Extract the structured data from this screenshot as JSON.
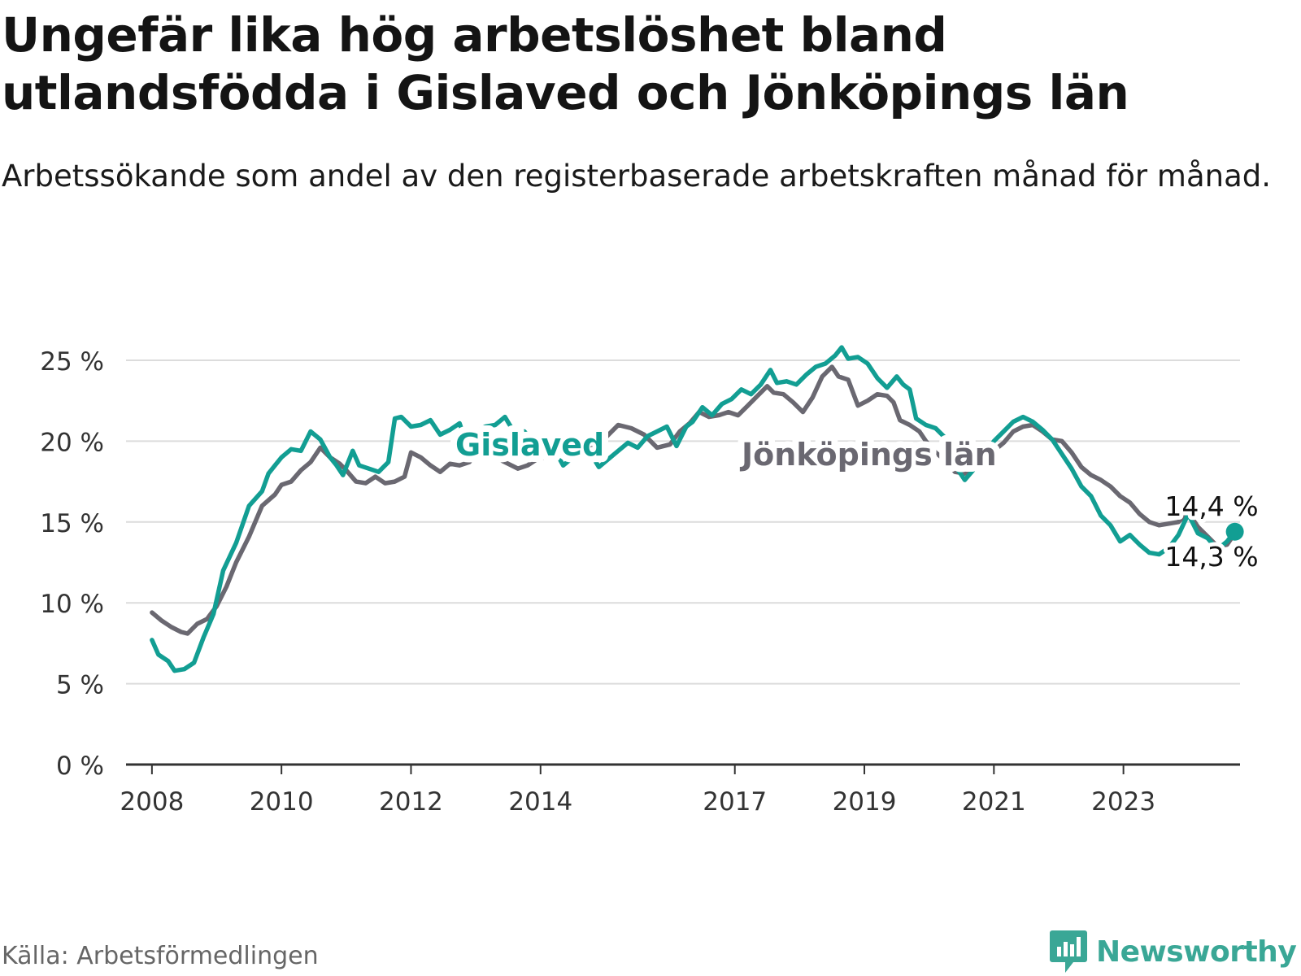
{
  "header": {
    "title": "Ungefär lika hög arbetslöshet bland utlandsfödda i Gislaved och Jönköpings län",
    "subtitle": "Arbetssökande som andel av den registerbaserade arbetskraften månad för månad."
  },
  "footer": {
    "source": "Källa: Arbetsförmedlingen",
    "brand": "Newsworthy"
  },
  "colors": {
    "gislaved": "#129e93",
    "jonkoping": "#6a6871",
    "grid": "#dcdcdc",
    "axis": "#333333",
    "brand": "#3aa796"
  },
  "chart_data": {
    "type": "line",
    "title": "Ungefär lika hög arbetslöshet bland utlandsfödda i Gislaved och Jönköpings län",
    "xlabel": "",
    "ylabel": "",
    "xlim": [
      2007.6,
      2024.8
    ],
    "ylim": [
      0,
      25
    ],
    "y_ticks": [
      0,
      5,
      10,
      15,
      20,
      25
    ],
    "y_tick_labels": [
      "0 %",
      "5 %",
      "10 %",
      "15 %",
      "20 %",
      "25 %"
    ],
    "x_ticks": [
      2008,
      2010,
      2012,
      2014,
      2017,
      2019,
      2021,
      2023
    ],
    "x_tick_labels": [
      "2008",
      "2010",
      "2012",
      "2014",
      "2017",
      "2019",
      "2021",
      "2023"
    ],
    "legend": "inline labels",
    "series": [
      {
        "name": "Jönköpings län",
        "label_text": "Jönköpings län",
        "end_label": "14,3 %",
        "points": [
          [
            2008.0,
            9.4
          ],
          [
            2008.15,
            8.9
          ],
          [
            2008.3,
            8.5
          ],
          [
            2008.45,
            8.2
          ],
          [
            2008.55,
            8.1
          ],
          [
            2008.7,
            8.7
          ],
          [
            2008.85,
            9.0
          ],
          [
            2009.0,
            9.8
          ],
          [
            2009.15,
            11.0
          ],
          [
            2009.3,
            12.5
          ],
          [
            2009.5,
            14.1
          ],
          [
            2009.7,
            16.0
          ],
          [
            2009.9,
            16.7
          ],
          [
            2010.0,
            17.3
          ],
          [
            2010.15,
            17.5
          ],
          [
            2010.3,
            18.2
          ],
          [
            2010.45,
            18.7
          ],
          [
            2010.6,
            19.6
          ],
          [
            2010.75,
            19.0
          ],
          [
            2010.9,
            18.6
          ],
          [
            2011.0,
            18.2
          ],
          [
            2011.15,
            17.5
          ],
          [
            2011.3,
            17.4
          ],
          [
            2011.45,
            17.8
          ],
          [
            2011.6,
            17.4
          ],
          [
            2011.75,
            17.5
          ],
          [
            2011.9,
            17.8
          ],
          [
            2012.0,
            19.3
          ],
          [
            2012.15,
            19.0
          ],
          [
            2012.3,
            18.5
          ],
          [
            2012.45,
            18.1
          ],
          [
            2012.6,
            18.6
          ],
          [
            2012.75,
            18.5
          ],
          [
            2012.9,
            18.7
          ],
          [
            2013.05,
            19.6
          ],
          [
            2013.2,
            18.9
          ],
          [
            2013.35,
            18.9
          ],
          [
            2013.5,
            18.6
          ],
          [
            2013.65,
            18.3
          ],
          [
            2013.8,
            18.5
          ],
          [
            2013.95,
            18.9
          ],
          [
            2014.1,
            19.0
          ],
          [
            2014.25,
            19.5
          ],
          [
            2014.4,
            20.2
          ],
          [
            2014.6,
            19.6
          ],
          [
            2014.8,
            19.8
          ],
          [
            2015.0,
            20.2
          ],
          [
            2015.2,
            21.0
          ],
          [
            2015.4,
            20.8
          ],
          [
            2015.6,
            20.4
          ],
          [
            2015.8,
            19.6
          ],
          [
            2016.0,
            19.8
          ],
          [
            2016.15,
            20.6
          ],
          [
            2016.3,
            21.1
          ],
          [
            2016.45,
            21.8
          ],
          [
            2016.6,
            21.5
          ],
          [
            2016.75,
            21.6
          ],
          [
            2016.9,
            21.8
          ],
          [
            2017.05,
            21.6
          ],
          [
            2017.2,
            22.2
          ],
          [
            2017.35,
            22.8
          ],
          [
            2017.5,
            23.4
          ],
          [
            2017.6,
            23.0
          ],
          [
            2017.75,
            22.9
          ],
          [
            2017.9,
            22.4
          ],
          [
            2018.05,
            21.8
          ],
          [
            2018.2,
            22.7
          ],
          [
            2018.35,
            24.0
          ],
          [
            2018.5,
            24.6
          ],
          [
            2018.6,
            24.0
          ],
          [
            2018.75,
            23.8
          ],
          [
            2018.9,
            22.2
          ],
          [
            2019.05,
            22.5
          ],
          [
            2019.2,
            22.9
          ],
          [
            2019.35,
            22.8
          ],
          [
            2019.45,
            22.4
          ],
          [
            2019.55,
            21.3
          ],
          [
            2019.7,
            21.0
          ],
          [
            2019.85,
            20.6
          ],
          [
            2019.95,
            20.0
          ],
          [
            2020.1,
            19.3
          ],
          [
            2020.25,
            18.8
          ],
          [
            2020.4,
            18.1
          ],
          [
            2020.55,
            18.0
          ],
          [
            2020.7,
            18.5
          ],
          [
            2020.85,
            19.0
          ],
          [
            2021.0,
            19.4
          ],
          [
            2021.15,
            19.9
          ],
          [
            2021.3,
            20.6
          ],
          [
            2021.45,
            20.9
          ],
          [
            2021.6,
            21.0
          ],
          [
            2021.75,
            20.6
          ],
          [
            2021.9,
            20.1
          ],
          [
            2022.05,
            20.0
          ],
          [
            2022.2,
            19.3
          ],
          [
            2022.35,
            18.4
          ],
          [
            2022.5,
            17.9
          ],
          [
            2022.65,
            17.6
          ],
          [
            2022.8,
            17.2
          ],
          [
            2022.95,
            16.6
          ],
          [
            2023.1,
            16.2
          ],
          [
            2023.25,
            15.5
          ],
          [
            2023.4,
            15.0
          ],
          [
            2023.55,
            14.8
          ],
          [
            2023.7,
            14.9
          ],
          [
            2023.85,
            15.0
          ],
          [
            2024.0,
            15.6
          ],
          [
            2024.15,
            14.7
          ],
          [
            2024.3,
            14.1
          ],
          [
            2024.45,
            13.5
          ],
          [
            2024.6,
            13.6
          ],
          [
            2024.72,
            14.3
          ]
        ]
      },
      {
        "name": "Gislaved",
        "label_text": "Gislaved",
        "end_label": "14,4 %",
        "points": [
          [
            2008.0,
            7.7
          ],
          [
            2008.1,
            6.8
          ],
          [
            2008.25,
            6.4
          ],
          [
            2008.35,
            5.8
          ],
          [
            2008.5,
            5.9
          ],
          [
            2008.65,
            6.3
          ],
          [
            2008.8,
            7.9
          ],
          [
            2008.95,
            9.3
          ],
          [
            2009.1,
            12.0
          ],
          [
            2009.3,
            13.7
          ],
          [
            2009.5,
            16.0
          ],
          [
            2009.7,
            16.9
          ],
          [
            2009.8,
            18.0
          ],
          [
            2009.9,
            18.5
          ],
          [
            2010.0,
            19.0
          ],
          [
            2010.15,
            19.5
          ],
          [
            2010.3,
            19.4
          ],
          [
            2010.45,
            20.6
          ],
          [
            2010.6,
            20.1
          ],
          [
            2010.75,
            19.0
          ],
          [
            2010.85,
            18.5
          ],
          [
            2010.95,
            17.9
          ],
          [
            2011.1,
            19.4
          ],
          [
            2011.2,
            18.5
          ],
          [
            2011.35,
            18.3
          ],
          [
            2011.5,
            18.1
          ],
          [
            2011.65,
            18.7
          ],
          [
            2011.75,
            21.4
          ],
          [
            2011.85,
            21.5
          ],
          [
            2012.0,
            20.9
          ],
          [
            2012.15,
            21.0
          ],
          [
            2012.3,
            21.3
          ],
          [
            2012.45,
            20.4
          ],
          [
            2012.6,
            20.7
          ],
          [
            2012.75,
            21.1
          ],
          [
            2012.85,
            19.9
          ],
          [
            2013.0,
            20.6
          ],
          [
            2013.15,
            20.9
          ],
          [
            2013.3,
            21.0
          ],
          [
            2013.45,
            21.5
          ],
          [
            2013.6,
            20.5
          ],
          [
            2013.75,
            20.6
          ],
          [
            2013.9,
            19.9
          ],
          [
            2014.05,
            20.2
          ],
          [
            2014.2,
            19.6
          ],
          [
            2014.35,
            18.5
          ],
          [
            2014.5,
            19.0
          ],
          [
            2014.6,
            19.2
          ],
          [
            2014.75,
            19.4
          ],
          [
            2014.9,
            18.4
          ],
          [
            2015.05,
            18.9
          ],
          [
            2015.2,
            19.4
          ],
          [
            2015.35,
            19.9
          ],
          [
            2015.5,
            19.6
          ],
          [
            2015.65,
            20.3
          ],
          [
            2015.8,
            20.6
          ],
          [
            2015.95,
            20.9
          ],
          [
            2016.1,
            19.7
          ],
          [
            2016.25,
            20.9
          ],
          [
            2016.35,
            21.2
          ],
          [
            2016.5,
            22.1
          ],
          [
            2016.65,
            21.6
          ],
          [
            2016.8,
            22.3
          ],
          [
            2016.95,
            22.6
          ],
          [
            2017.1,
            23.2
          ],
          [
            2017.25,
            22.9
          ],
          [
            2017.4,
            23.5
          ],
          [
            2017.55,
            24.4
          ],
          [
            2017.65,
            23.6
          ],
          [
            2017.8,
            23.7
          ],
          [
            2017.95,
            23.5
          ],
          [
            2018.1,
            24.1
          ],
          [
            2018.25,
            24.6
          ],
          [
            2018.4,
            24.8
          ],
          [
            2018.55,
            25.3
          ],
          [
            2018.65,
            25.8
          ],
          [
            2018.75,
            25.1
          ],
          [
            2018.9,
            25.2
          ],
          [
            2019.05,
            24.8
          ],
          [
            2019.2,
            23.9
          ],
          [
            2019.35,
            23.3
          ],
          [
            2019.5,
            24.0
          ],
          [
            2019.6,
            23.5
          ],
          [
            2019.7,
            23.2
          ],
          [
            2019.8,
            21.4
          ],
          [
            2019.95,
            21.0
          ],
          [
            2020.1,
            20.8
          ],
          [
            2020.25,
            20.2
          ],
          [
            2020.4,
            18.5
          ],
          [
            2020.55,
            17.6
          ],
          [
            2020.7,
            18.3
          ],
          [
            2020.85,
            19.0
          ],
          [
            2021.0,
            20.0
          ],
          [
            2021.15,
            20.6
          ],
          [
            2021.3,
            21.2
          ],
          [
            2021.45,
            21.5
          ],
          [
            2021.6,
            21.2
          ],
          [
            2021.75,
            20.7
          ],
          [
            2021.9,
            20.1
          ],
          [
            2022.05,
            19.2
          ],
          [
            2022.2,
            18.3
          ],
          [
            2022.35,
            17.2
          ],
          [
            2022.5,
            16.6
          ],
          [
            2022.65,
            15.4
          ],
          [
            2022.8,
            14.8
          ],
          [
            2022.95,
            13.8
          ],
          [
            2023.1,
            14.2
          ],
          [
            2023.25,
            13.6
          ],
          [
            2023.4,
            13.1
          ],
          [
            2023.55,
            13.0
          ],
          [
            2023.7,
            13.4
          ],
          [
            2023.85,
            14.2
          ],
          [
            2024.0,
            15.5
          ],
          [
            2024.15,
            14.3
          ],
          [
            2024.3,
            14.0
          ],
          [
            2024.45,
            13.3
          ],
          [
            2024.6,
            13.8
          ],
          [
            2024.72,
            14.4
          ]
        ]
      }
    ]
  }
}
